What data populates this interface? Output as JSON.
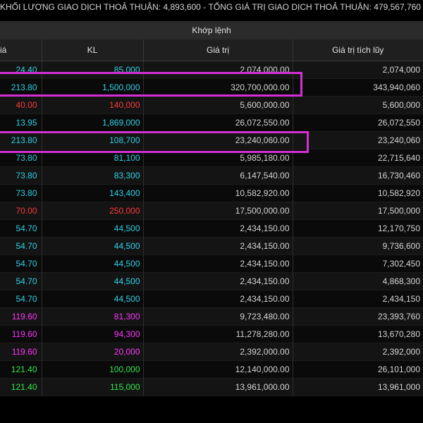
{
  "summary": {
    "volume_label": "KHỐI LƯỢNG GIAO DỊCH THOẢ THUẬN:",
    "volume_value": "4,893,600",
    "separator": "-",
    "value_label": "TỔNG GIÁ TRỊ GIAO DỊCH THOẢ THUẬN:",
    "value_value": "479,567,760"
  },
  "group_header": "Khớp lệnh",
  "columns": [
    "iá",
    "KL",
    "Giá trị",
    "Giá trị tích lũy"
  ],
  "rows": [
    {
      "price": "24.40",
      "vol": "85,000",
      "value": "2,074,000.00",
      "cum": "2,074,000",
      "color": "c-cyan"
    },
    {
      "price": "213.80",
      "vol": "1,500,000",
      "value": "320,700,000.00",
      "cum": "343,940,060",
      "color": "c-cyan"
    },
    {
      "price": "40.00",
      "vol": "140,000",
      "value": "5,600,000.00",
      "cum": "5,600,000",
      "color": "c-red"
    },
    {
      "price": "13.95",
      "vol": "1,869,000",
      "value": "26,072,550.00",
      "cum": "26,072,550",
      "color": "c-cyan"
    },
    {
      "price": "213.80",
      "vol": "108,700",
      "value": "23,240,060.00",
      "cum": "23,240,060",
      "color": "c-cyan"
    },
    {
      "price": "73.80",
      "vol": "81,100",
      "value": "5,985,180.00",
      "cum": "22,715,640",
      "color": "c-cyan"
    },
    {
      "price": "73.80",
      "vol": "83,300",
      "value": "6,147,540.00",
      "cum": "16,730,460",
      "color": "c-cyan"
    },
    {
      "price": "73.80",
      "vol": "143,400",
      "value": "10,582,920.00",
      "cum": "10,582,920",
      "color": "c-cyan"
    },
    {
      "price": "70.00",
      "vol": "250,000",
      "value": "17,500,000.00",
      "cum": "17,500,000",
      "color": "c-red"
    },
    {
      "price": "54.70",
      "vol": "44,500",
      "value": "2,434,150.00",
      "cum": "12,170,750",
      "color": "c-cyan"
    },
    {
      "price": "54.70",
      "vol": "44,500",
      "value": "2,434,150.00",
      "cum": "9,736,600",
      "color": "c-cyan"
    },
    {
      "price": "54.70",
      "vol": "44,500",
      "value": "2,434,150.00",
      "cum": "7,302,450",
      "color": "c-cyan"
    },
    {
      "price": "54.70",
      "vol": "44,500",
      "value": "2,434,150.00",
      "cum": "4,868,300",
      "color": "c-cyan"
    },
    {
      "price": "54.70",
      "vol": "44,500",
      "value": "2,434,150.00",
      "cum": "2,434,150",
      "color": "c-cyan"
    },
    {
      "price": "119.60",
      "vol": "81,300",
      "value": "9,723,480.00",
      "cum": "23,393,760",
      "color": "c-purple"
    },
    {
      "price": "119.60",
      "vol": "94,300",
      "value": "11,278,280.00",
      "cum": "13,670,280",
      "color": "c-purple"
    },
    {
      "price": "119.60",
      "vol": "20,000",
      "value": "2,392,000.00",
      "cum": "2,392,000",
      "color": "c-purple"
    },
    {
      "price": "121.40",
      "vol": "100,000",
      "value": "12,140,000.00",
      "cum": "26,101,000",
      "color": "c-green"
    },
    {
      "price": "121.40",
      "vol": "115,000",
      "value": "13,961,000.00",
      "cum": "13,961,000",
      "color": "c-green"
    }
  ]
}
